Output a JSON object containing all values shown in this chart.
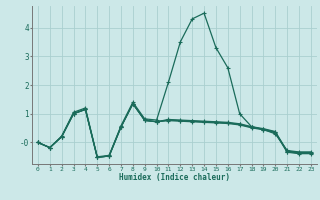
{
  "xlabel": "Humidex (Indice chaleur)",
  "bg_color": "#cce8e8",
  "grid_color": "#aacfcf",
  "line_color": "#1a6b5a",
  "xlim": [
    -0.5,
    23.5
  ],
  "ylim": [
    -0.75,
    4.75
  ],
  "xticks": [
    0,
    1,
    2,
    3,
    4,
    5,
    6,
    7,
    8,
    9,
    10,
    11,
    12,
    13,
    14,
    15,
    16,
    17,
    18,
    19,
    20,
    21,
    22,
    23
  ],
  "yticks": [
    0,
    1,
    2,
    3,
    4
  ],
  "ytick_labels": [
    "-0",
    "1",
    "2",
    "3",
    "4"
  ],
  "series": [
    [
      0.0,
      -0.18,
      0.22,
      1.05,
      1.2,
      -0.5,
      -0.45,
      0.58,
      1.4,
      0.82,
      0.78,
      2.1,
      3.5,
      4.3,
      4.5,
      3.3,
      2.6,
      1.0,
      0.55,
      0.45,
      0.3,
      -0.28,
      -0.33,
      -0.33
    ],
    [
      0.0,
      -0.18,
      0.2,
      1.0,
      1.15,
      -0.52,
      -0.47,
      0.54,
      1.35,
      0.77,
      0.72,
      0.8,
      0.78,
      0.76,
      0.74,
      0.72,
      0.7,
      0.65,
      0.55,
      0.48,
      0.38,
      -0.3,
      -0.35,
      -0.35
    ],
    [
      0.0,
      -0.18,
      0.2,
      1.0,
      1.15,
      -0.52,
      -0.47,
      0.54,
      1.35,
      0.77,
      0.72,
      0.78,
      0.76,
      0.74,
      0.72,
      0.7,
      0.68,
      0.63,
      0.53,
      0.46,
      0.36,
      -0.32,
      -0.37,
      -0.37
    ],
    [
      0.0,
      -0.18,
      0.2,
      1.0,
      1.15,
      -0.52,
      -0.47,
      0.54,
      1.35,
      0.77,
      0.72,
      0.76,
      0.74,
      0.72,
      0.7,
      0.68,
      0.66,
      0.61,
      0.51,
      0.44,
      0.34,
      -0.34,
      -0.39,
      -0.39
    ]
  ]
}
